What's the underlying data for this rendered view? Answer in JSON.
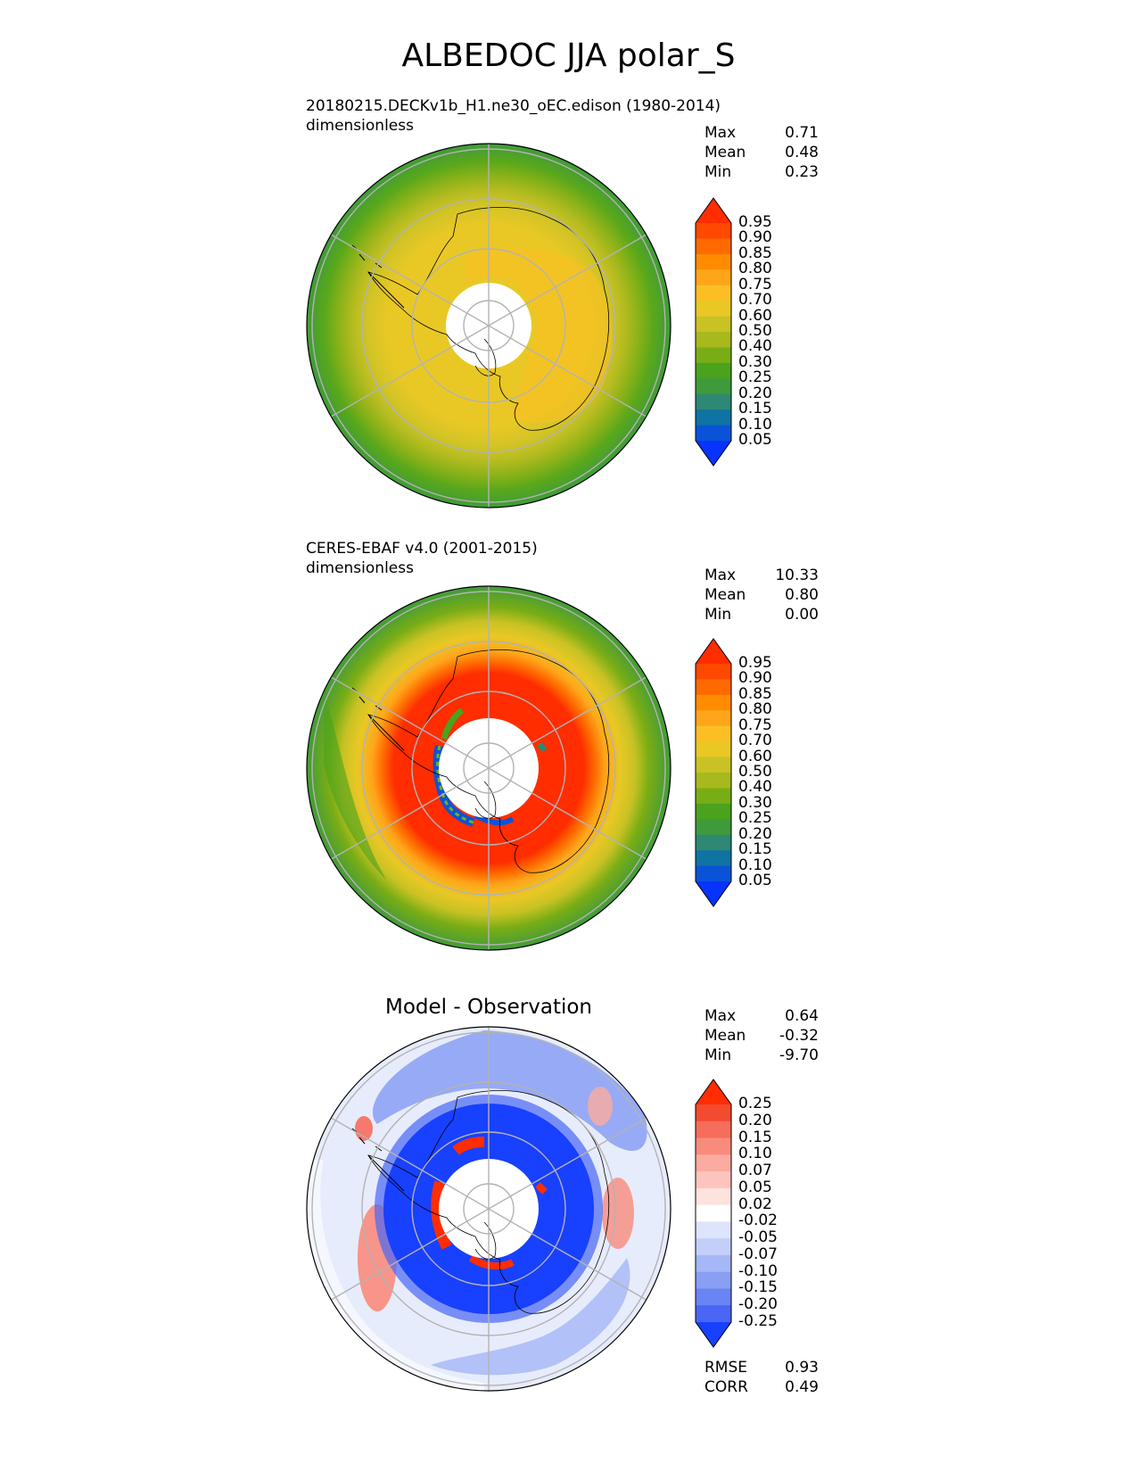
{
  "title": "ALBEDOC JJA polar_S",
  "panels": {
    "model": {
      "heading": "20180215.DECKv1b_H1.ne30_oEC.edison (1980-2014)",
      "units": "dimensionless",
      "stats": [
        {
          "label": "Max",
          "value": "0.71"
        },
        {
          "label": "Mean",
          "value": "0.48"
        },
        {
          "label": "Min",
          "value": "0.23"
        }
      ]
    },
    "obs": {
      "heading": "CERES-EBAF v4.0 (2001-2015)",
      "units": "dimensionless",
      "stats": [
        {
          "label": "Max",
          "value": "10.33"
        },
        {
          "label": "Mean",
          "value": "0.80"
        },
        {
          "label": "Min",
          "value": "0.00"
        }
      ]
    },
    "diff": {
      "heading": "Model - Observation",
      "stats": [
        {
          "label": "Max",
          "value": "0.64"
        },
        {
          "label": "Mean",
          "value": "-0.32"
        },
        {
          "label": "Min",
          "value": "-9.70"
        }
      ],
      "metrics": [
        {
          "label": "RMSE",
          "value": "0.93"
        },
        {
          "label": "CORR",
          "value": "0.49"
        }
      ]
    }
  },
  "colorbars": {
    "albedo": {
      "levels": [
        "0.95",
        "0.90",
        "0.85",
        "0.80",
        "0.75",
        "0.70",
        "0.60",
        "0.50",
        "0.40",
        "0.30",
        "0.25",
        "0.20",
        "0.15",
        "0.10",
        "0.05"
      ],
      "colors": [
        "#ff2d00",
        "#ff4800",
        "#ff6a00",
        "#ff8c00",
        "#ffa51a",
        "#fbbf24",
        "#e9c825",
        "#c9c224",
        "#a7b91c",
        "#79ad15",
        "#4aa21d",
        "#3f9a3c",
        "#2e8873",
        "#0f73a3",
        "#0a53d8",
        "#0633ff"
      ]
    },
    "diff": {
      "levels": [
        "0.25",
        "0.20",
        "0.15",
        "0.10",
        "0.07",
        "0.05",
        "0.02",
        "-0.02",
        "-0.05",
        "-0.07",
        "-0.10",
        "-0.15",
        "-0.20",
        "-0.25"
      ],
      "colors": [
        "#ff2d00",
        "#f34a30",
        "#f66d5c",
        "#f98b7c",
        "#fbab9f",
        "#fcc4bd",
        "#fde2de",
        "#ffffff",
        "#dde4fb",
        "#c3cff9",
        "#a5b7f6",
        "#889ff4",
        "#6984f3",
        "#4966f5",
        "#1840ff"
      ]
    }
  },
  "chart_data": [
    {
      "type": "heatmap",
      "title": "20180215.DECKv1b_H1.ne30_oEC.edison (1980-2014)",
      "projection": "south polar stereographic",
      "units": "dimensionless",
      "stats": {
        "max": 0.71,
        "mean": 0.48,
        "min": 0.23
      },
      "levels": [
        0.05,
        0.1,
        0.15,
        0.2,
        0.25,
        0.3,
        0.4,
        0.5,
        0.6,
        0.7,
        0.75,
        0.8,
        0.85,
        0.9,
        0.95
      ],
      "zones": [
        {
          "region": "outer ocean ring",
          "value_range": [
            0.3,
            0.4
          ]
        },
        {
          "region": "sea-ice zone",
          "value_range": [
            0.5,
            0.6
          ]
        },
        {
          "region": "Antarctic continent",
          "value_range": [
            0.6,
            0.7
          ]
        },
        {
          "region": "pole",
          "value": null
        }
      ]
    },
    {
      "type": "heatmap",
      "title": "CERES-EBAF v4.0 (2001-2015)",
      "projection": "south polar stereographic",
      "units": "dimensionless",
      "stats": {
        "max": 10.33,
        "mean": 0.8,
        "min": 0.0
      },
      "levels": [
        0.05,
        0.1,
        0.15,
        0.2,
        0.25,
        0.3,
        0.4,
        0.5,
        0.6,
        0.7,
        0.75,
        0.8,
        0.85,
        0.9,
        0.95
      ],
      "zones": [
        {
          "region": "outer ocean ring",
          "value_range": [
            0.3,
            0.5
          ]
        },
        {
          "region": "sea-ice zone",
          "value_range": [
            0.6,
            0.8
          ]
        },
        {
          "region": "Antarctic continent",
          "value_range": [
            0.95,
            1.0
          ]
        },
        {
          "region": "pole",
          "value": null
        }
      ]
    },
    {
      "type": "heatmap",
      "title": "Model - Observation",
      "projection": "south polar stereographic",
      "stats": {
        "max": 0.64,
        "mean": -0.32,
        "min": -9.7
      },
      "metrics": {
        "rmse": 0.93,
        "corr": 0.49
      },
      "levels": [
        -0.25,
        -0.2,
        -0.15,
        -0.1,
        -0.07,
        -0.05,
        -0.02,
        0.02,
        0.05,
        0.07,
        0.1,
        0.15,
        0.2,
        0.25
      ],
      "zones": [
        {
          "region": "outer ocean",
          "value_range": [
            -0.1,
            0.1
          ]
        },
        {
          "region": "sea-ice zone",
          "value_range": [
            -0.15,
            -0.05
          ]
        },
        {
          "region": "Antarctic continent",
          "value_range": [
            -0.3,
            -0.25
          ]
        },
        {
          "region": "near-pole edge",
          "value_range": [
            0.25,
            0.3
          ]
        },
        {
          "region": "pole",
          "value": null
        }
      ]
    }
  ]
}
